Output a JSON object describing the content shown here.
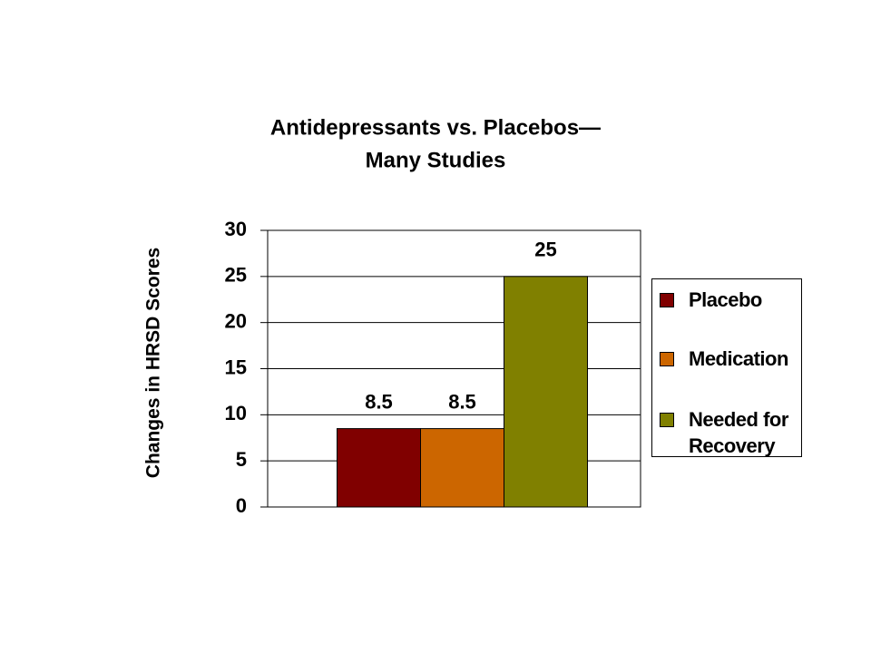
{
  "chart_data": {
    "type": "bar",
    "title": [
      "Antidepressants vs. Placebos—",
      "Many Studies"
    ],
    "y_label": "Changes in HRSD Scores",
    "categories": [
      null
    ],
    "series": [
      {
        "name": "Placebo",
        "color": "#800000",
        "values": [
          8.5
        ]
      },
      {
        "name": "Medication",
        "color": "#cc6600",
        "values": [
          8.5
        ]
      },
      {
        "name": "Needed for Recovery",
        "color": "#808000",
        "values": [
          25
        ]
      }
    ],
    "ylim": [
      0,
      30
    ],
    "yticks": [
      0,
      5,
      10,
      15,
      20,
      25,
      30
    ],
    "grid": true,
    "legend": "right"
  }
}
